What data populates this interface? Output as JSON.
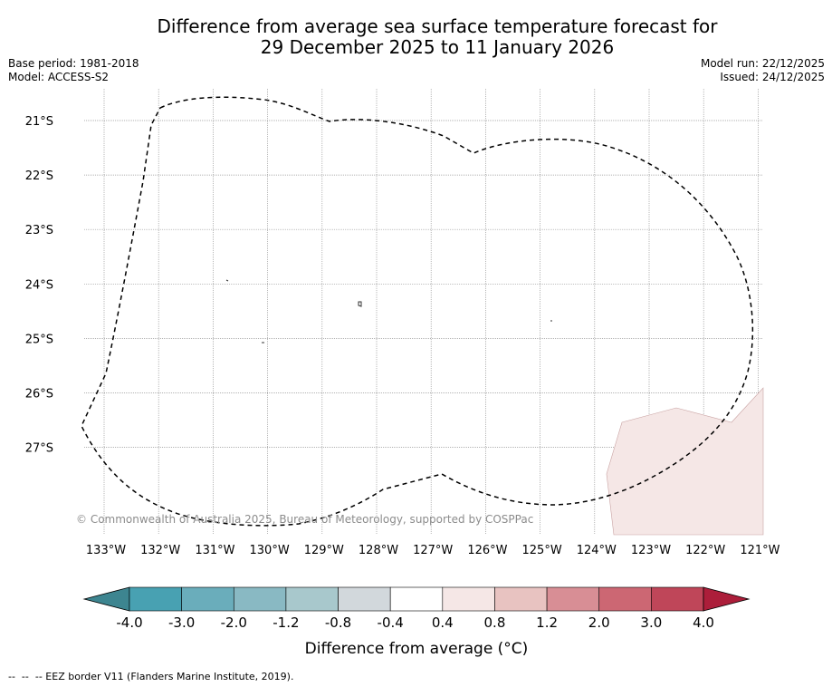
{
  "title": {
    "line1": "Difference from average sea surface temperature forecast for",
    "line2": "29 December 2025 to 11 January 2026"
  },
  "meta_left": {
    "base_period": "Base period: 1981-2018",
    "model": "Model: ACCESS-S2"
  },
  "meta_right": {
    "model_run": "Model run: 22/12/2025",
    "issued": "Issued: 24/12/2025"
  },
  "map": {
    "lat_labels": [
      "21°S",
      "22°S",
      "23°S",
      "24°S",
      "25°S",
      "26°S",
      "27°S"
    ],
    "lon_labels": [
      "133°W",
      "132°W",
      "131°W",
      "130°W",
      "129°W",
      "128°W",
      "127°W",
      "126°W",
      "125°W",
      "124°W",
      "123°W",
      "122°W",
      "121°W"
    ],
    "lat_values": [
      -21,
      -22,
      -23,
      -24,
      -25,
      -26,
      -27
    ],
    "lon_values": [
      -133,
      -132,
      -131,
      -130,
      -129,
      -128,
      -127,
      -126,
      -125,
      -124,
      -123,
      -122,
      -121
    ],
    "copyright": "© Commonwealth of Australia 2025, Bureau of Meteorology, supported by COSPPac",
    "anomaly_region_color": "#f5e7e6",
    "border_style": "dashed"
  },
  "colorbar": {
    "tick_labels": [
      "-4.0",
      "-3.0",
      "-2.0",
      "-1.2",
      "-0.8",
      "-0.4",
      "0.4",
      "0.8",
      "1.2",
      "2.0",
      "3.0",
      "4.0"
    ],
    "colors": [
      "#48a1b2",
      "#6aadbb",
      "#89b9c3",
      "#a8c8cc",
      "#d2d8dc",
      "#ffffff",
      "#f5e7e6",
      "#e8c3c1",
      "#d88e95",
      "#cc6773",
      "#bf4659"
    ],
    "under_color": "#3d8590",
    "over_color": "#ac1e3a",
    "label": "Difference from average (°C)"
  },
  "footer": {
    "legend_text": "--  --  -- EEZ border V11 (Flanders Marine Institute, 2019)."
  }
}
